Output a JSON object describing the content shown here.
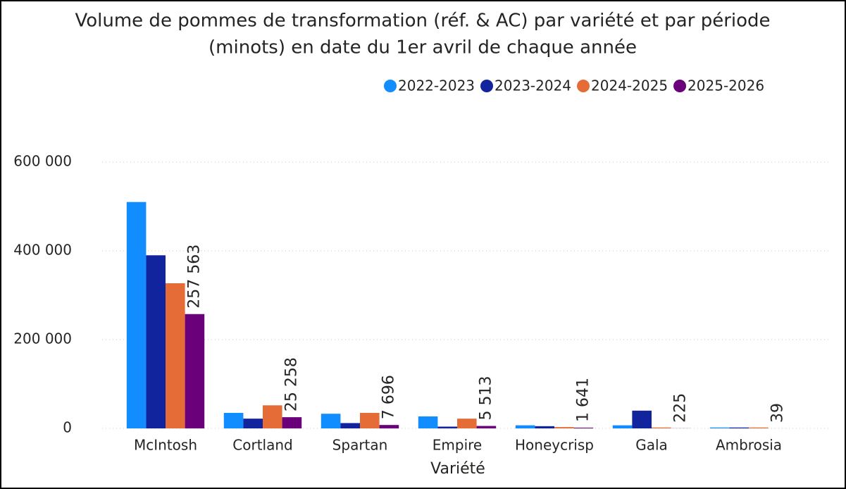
{
  "chart_data": {
    "type": "bar",
    "title": [
      "Volume de pommes de transformation (réf. & AC) par variété et par période",
      "(minots) en date du 1er avril de chaque année"
    ],
    "x_label": "Variété",
    "categories": [
      "McIntosh",
      "Cortland",
      "Spartan",
      "Empire",
      "Honeycrisp",
      "Gala",
      "Ambrosia"
    ],
    "series": [
      {
        "name": "2022-2023",
        "color": "#118DFF",
        "values": [
          510000,
          35000,
          33000,
          27000,
          7000,
          7000,
          2000
        ]
      },
      {
        "name": "2023-2024",
        "color": "#12239E",
        "values": [
          390000,
          22000,
          12000,
          4000,
          5000,
          40000,
          2000
        ]
      },
      {
        "name": "2024-2025",
        "color": "#E66C37",
        "values": [
          327000,
          52000,
          35000,
          22000,
          3000,
          2000,
          2000
        ]
      },
      {
        "name": "2025-2026",
        "color": "#6B007B",
        "values": [
          257563,
          25258,
          7696,
          5513,
          1641,
          225,
          39
        ],
        "value_labels": [
          "257 563",
          "25 258",
          "7 696",
          "5 513",
          "1 641",
          "225",
          "39"
        ]
      }
    ],
    "ylim": [
      0,
      600000
    ],
    "yticks": [
      0,
      {
        "value": 200000,
        "label": "200 000"
      },
      {
        "value": 400000,
        "label": "400 000"
      },
      {
        "value": 600000,
        "label": "600 000"
      }
    ],
    "grid": true,
    "legend": "top-right"
  }
}
